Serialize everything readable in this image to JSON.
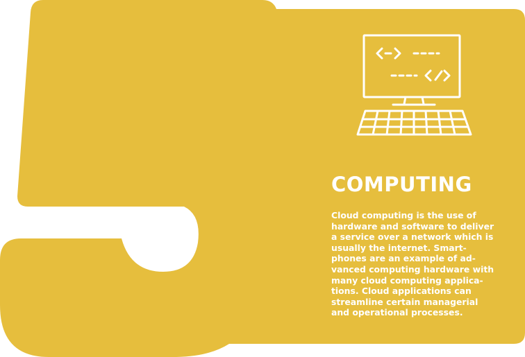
{
  "colors": {
    "background_shape": "#E6BE3D",
    "text": "#FFFFFF",
    "icon_stroke": "#FFFFFF"
  },
  "card": {
    "number_shape": "5",
    "icon": "computer-code-icon",
    "icon_code_line_1": "<–>",
    "icon_code_line_2": "</>",
    "title": "COMPUTING",
    "body_lines": [
      "Cloud computing is the use of",
      "hardware and software to deliver",
      "a service over a network which is",
      "usually the internet. Smart-",
      "phones are an example of ad-",
      "vanced computing hardware with",
      "many cloud computing applica-",
      "tions. Cloud applications can",
      "streamline certain managerial",
      "and operational processes."
    ]
  }
}
